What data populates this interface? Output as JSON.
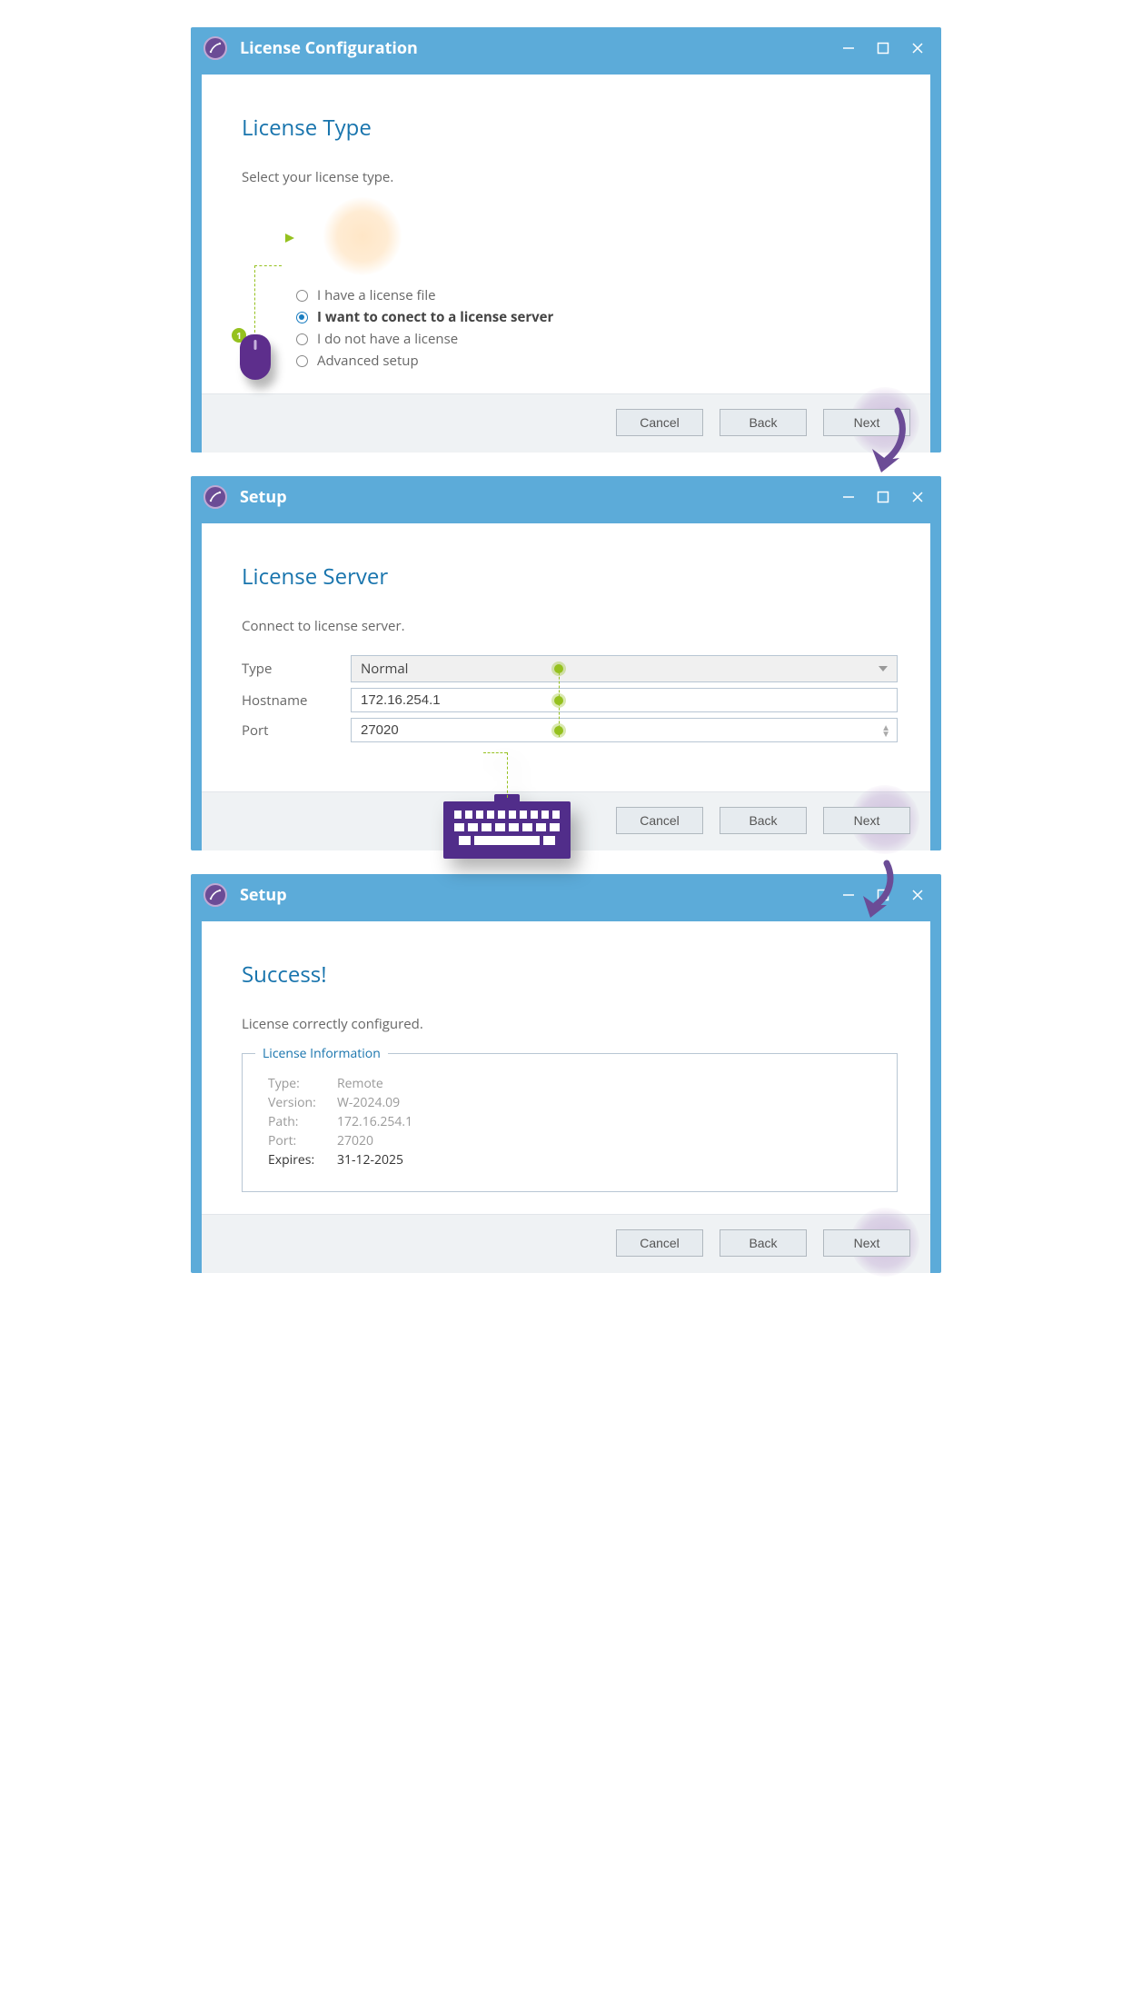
{
  "colors": {
    "frame": "#5cabd9",
    "heading": "#1874ad",
    "text": "#666666"
  },
  "step_badge": "1",
  "windows": [
    {
      "title": "License Configuration",
      "heading": "License Type",
      "prompt": "Select your license type.",
      "options": [
        {
          "label": "I have a license file",
          "selected": false
        },
        {
          "label": "I want to conect to a license server",
          "selected": true
        },
        {
          "label": "I do not have a license",
          "selected": false
        },
        {
          "label": "Advanced setup",
          "selected": false
        }
      ],
      "buttons": {
        "cancel": "Cancel",
        "back": "Back",
        "next": "Next"
      }
    },
    {
      "title": "Setup",
      "heading": "License Server",
      "prompt": "Connect to license server.",
      "fields": {
        "type_label": "Type",
        "type_value": "Normal",
        "host_label": "Hostname",
        "host_value": "172.16.254.1",
        "port_label": "Port",
        "port_value": "27020"
      },
      "buttons": {
        "cancel": "Cancel",
        "back": "Back",
        "next": "Next"
      }
    },
    {
      "title": "Setup",
      "heading": "Success!",
      "prompt": "License correctly configured.",
      "info": {
        "legend": "License Information",
        "rows": [
          {
            "label": "Type:",
            "value": "Remote",
            "strong": false
          },
          {
            "label": "Version:",
            "value": "W-2024.09",
            "strong": false
          },
          {
            "label": "Path:",
            "value": "172.16.254.1",
            "strong": false
          },
          {
            "label": "Port:",
            "value": "27020",
            "strong": false
          },
          {
            "label": "Expires:",
            "value": "31-12-2025",
            "strong": true
          }
        ]
      },
      "buttons": {
        "cancel": "Cancel",
        "back": "Back",
        "next": "Next"
      }
    }
  ]
}
